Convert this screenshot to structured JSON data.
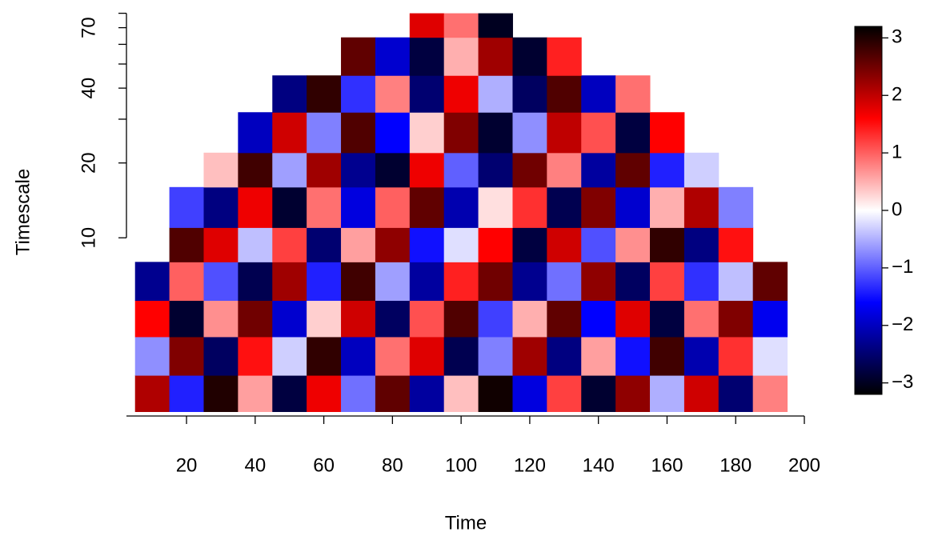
{
  "chart_data": {
    "type": "heatmap",
    "x_label": "Time",
    "y_label": "Timescale",
    "xlim": [
      2.5,
      200
    ],
    "xticks": [
      20,
      40,
      60,
      80,
      100,
      120,
      140,
      160,
      180,
      200
    ],
    "ylim": [
      1.92,
      84
    ],
    "y_log": true,
    "yticks": [
      10,
      20,
      40,
      70
    ],
    "y_minor_ticks": [
      30,
      50,
      60,
      80
    ],
    "x_bins": [
      5,
      15,
      25,
      35,
      45,
      55,
      65,
      75,
      85,
      95,
      105,
      115,
      125,
      135,
      145,
      155,
      165,
      175,
      185,
      195
    ],
    "y_bins": [
      2,
      2.8,
      4,
      5.6,
      8,
      11,
      16,
      22,
      32,
      45,
      64,
      80
    ],
    "z": [
      [
        2.1,
        -1.4,
        3.0,
        0.6,
        -2.8,
        1.7,
        -0.9,
        2.6,
        -2.2,
        0.4,
        3.1,
        -1.8,
        1.2,
        -2.9,
        2.3,
        -0.5,
        1.9,
        -2.5,
        0.8
      ],
      [
        -0.7,
        2.4,
        -2.6,
        1.5,
        -0.3,
        2.9,
        -2.0,
        0.9,
        1.8,
        -2.7,
        -0.8,
        2.2,
        -2.4,
        0.6,
        -1.5,
        2.8,
        -2.1,
        1.3,
        -0.2
      ],
      [
        1.6,
        -2.9,
        0.7,
        2.5,
        -1.9,
        0.3,
        1.9,
        -2.6,
        1.1,
        2.7,
        -1.2,
        0.5,
        2.6,
        -1.6,
        1.8,
        -2.8,
        0.9,
        2.4,
        -1.7
      ],
      [
        -2.3,
        1.0,
        -1.1,
        -2.7,
        2.2,
        -1.4,
        2.8,
        -0.6,
        -2.2,
        1.4,
        2.5,
        -2.3,
        -0.9,
        2.3,
        -2.6,
        1.2,
        -1.3,
        -0.4,
        2.6
      ],
      [
        null,
        2.7,
        1.8,
        -0.4,
        1.2,
        -2.5,
        0.6,
        2.3,
        -1.5,
        -0.2,
        1.6,
        -2.8,
        1.9,
        -1.1,
        0.7,
        2.9,
        -2.4,
        1.5,
        null
      ],
      [
        null,
        -1.2,
        -2.4,
        1.7,
        -2.9,
        0.9,
        -1.8,
        1.0,
        2.6,
        -2.1,
        0.2,
        1.3,
        -2.7,
        2.4,
        -1.9,
        0.5,
        2.1,
        -0.8,
        null
      ],
      [
        null,
        null,
        0.4,
        2.8,
        -0.6,
        2.2,
        -2.3,
        -2.9,
        1.7,
        -1.0,
        -2.5,
        2.5,
        0.8,
        -2.2,
        2.6,
        -1.4,
        -0.3,
        null,
        null
      ],
      [
        null,
        null,
        null,
        -2.0,
        1.9,
        -0.8,
        2.7,
        -1.6,
        0.3,
        2.4,
        -2.9,
        -0.7,
        2.0,
        1.1,
        -2.8,
        1.6,
        null,
        null,
        null
      ],
      [
        null,
        null,
        null,
        null,
        -2.4,
        2.9,
        -1.3,
        0.8,
        -2.5,
        1.7,
        -0.5,
        -2.6,
        2.7,
        -2.0,
        0.9,
        null,
        null,
        null,
        null
      ],
      [
        null,
        null,
        null,
        null,
        null,
        null,
        2.6,
        -1.9,
        -2.8,
        0.5,
        2.2,
        -2.9,
        1.4,
        null,
        null,
        null,
        null,
        null,
        null
      ],
      [
        null,
        null,
        null,
        null,
        null,
        null,
        null,
        null,
        1.8,
        0.9,
        -3.0,
        null,
        null,
        null,
        null,
        null,
        null,
        null,
        null
      ]
    ],
    "colormap": [
      "#000000",
      "#0000ff",
      "#ffffff",
      "#ff0000",
      "#000000"
    ],
    "colorbar_lim": [
      -3.2,
      3.2
    ],
    "colorbar_ticks": [
      {
        "value": -3,
        "label": "−3"
      },
      {
        "value": -2,
        "label": "−2"
      },
      {
        "value": -1,
        "label": "−1"
      },
      0,
      1,
      2,
      3
    ]
  }
}
